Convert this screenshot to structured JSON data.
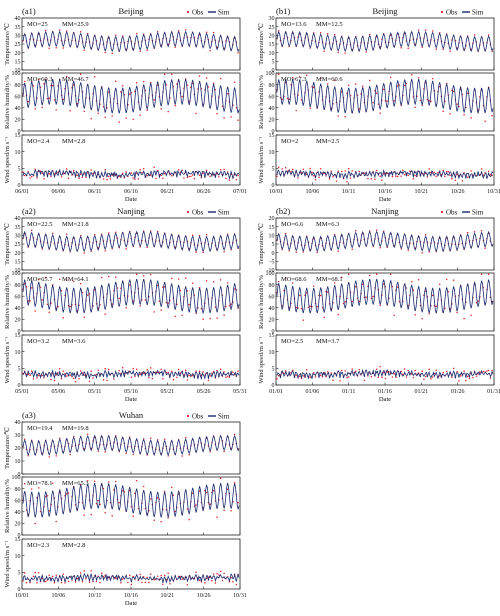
{
  "legend": {
    "obs_label": "Obs",
    "sim_label": "Sim"
  },
  "colors": {
    "obs": "#e8202a",
    "sim": "#1c2a6e",
    "axis": "#222222"
  },
  "variable_labels": {
    "temperature": "Temperature/℃",
    "rh": "Relative humidity/%",
    "wind": "Wind speed/m s⁻¹"
  },
  "chart_data": [
    {
      "id": "a1",
      "panel_label": "(a1)",
      "title": "Beijing",
      "type": "line",
      "xlabel": "Date",
      "x_ticks": [
        "06/01",
        "06/06",
        "06/11",
        "06/16",
        "06/21",
        "06/26",
        "07/01"
      ],
      "rows": [
        {
          "var": "temperature",
          "ylim": [
            10,
            40
          ],
          "yticks": [
            "10",
            "15",
            "20",
            "25",
            "30",
            "35",
            "40"
          ],
          "mo": "MO=25",
          "mm": "MM=25.9"
        },
        {
          "var": "rh",
          "ylim": [
            0,
            100
          ],
          "yticks": [
            "0",
            "20",
            "40",
            "60",
            "80",
            "100"
          ],
          "mo": "MO=60.3",
          "mm": "MM=46.7"
        },
        {
          "var": "wind",
          "ylim": [
            0,
            15
          ],
          "yticks": [
            "0",
            "5",
            "10",
            "15"
          ],
          "mo": "MO=2.4",
          "mm": "MM=2.8"
        }
      ]
    },
    {
      "id": "b1",
      "panel_label": "(b1)",
      "title": "Beijing",
      "type": "line",
      "xlabel": "Date",
      "x_ticks": [
        "10/01",
        "10/06",
        "10/11",
        "10/16",
        "10/21",
        "10/26",
        "10/31"
      ],
      "rows": [
        {
          "var": "temperature",
          "ylim": [
            0,
            30
          ],
          "yticks": [
            "0",
            "5",
            "10",
            "15",
            "20",
            "25",
            "30"
          ],
          "mo": "MO=13.6",
          "mm": "MM=12.5"
        },
        {
          "var": "rh",
          "ylim": [
            0,
            100
          ],
          "yticks": [
            "0",
            "20",
            "40",
            "60",
            "80",
            "100"
          ],
          "mo": "MO=67.3",
          "mm": "MM=60.6"
        },
        {
          "var": "wind",
          "ylim": [
            0,
            15
          ],
          "yticks": [
            "0",
            "5",
            "10",
            "15"
          ],
          "mo": "MO=2",
          "mm": "MM=2.5"
        }
      ]
    },
    {
      "id": "a2",
      "panel_label": "(a2)",
      "title": "Nanjing",
      "type": "line",
      "xlabel": "Date",
      "x_ticks": [
        "05/01",
        "05/06",
        "05/11",
        "05/16",
        "05/21",
        "05/26",
        "05/31"
      ],
      "rows": [
        {
          "var": "temperature",
          "ylim": [
            10,
            40
          ],
          "yticks": [
            "10",
            "15",
            "20",
            "25",
            "30",
            "35",
            "40"
          ],
          "mo": "MO=22.5",
          "mm": "MM=21.8"
        },
        {
          "var": "rh",
          "ylim": [
            0,
            100
          ],
          "yticks": [
            "0",
            "20",
            "40",
            "60",
            "80",
            "100"
          ],
          "mo": "MO=65.7",
          "mm": "MM=64.1"
        },
        {
          "var": "wind",
          "ylim": [
            0,
            15
          ],
          "yticks": [
            "0",
            "5",
            "10",
            "15"
          ],
          "mo": "MO=3.2",
          "mm": "MM=3.6"
        }
      ]
    },
    {
      "id": "b2",
      "panel_label": "(b2)",
      "title": "Nanjing",
      "type": "line",
      "xlabel": "Date",
      "x_ticks": [
        "01/01",
        "01/06",
        "01/11",
        "01/16",
        "01/21",
        "01/26",
        "01/31"
      ],
      "rows": [
        {
          "var": "temperature",
          "ylim": [
            -10,
            20
          ],
          "yticks": [
            "-10",
            "-5",
            "0",
            "5",
            "10",
            "15",
            "20"
          ],
          "mo": "MO=6.6",
          "mm": "MM=6.3"
        },
        {
          "var": "rh",
          "ylim": [
            0,
            100
          ],
          "yticks": [
            "0",
            "20",
            "40",
            "60",
            "80",
            "100"
          ],
          "mo": "MO=68.6",
          "mm": "MM=68.1"
        },
        {
          "var": "wind",
          "ylim": [
            0,
            15
          ],
          "yticks": [
            "0",
            "5",
            "10",
            "15"
          ],
          "mo": "MO=2.5",
          "mm": "MM=3.7"
        }
      ]
    },
    {
      "id": "a3",
      "panel_label": "(a3)",
      "title": "Wuhan",
      "type": "line",
      "xlabel": "Date",
      "x_ticks": [
        "10/01",
        "10/06",
        "10/11",
        "10/16",
        "10/21",
        "10/26",
        "10/31"
      ],
      "rows": [
        {
          "var": "temperature",
          "ylim": [
            0,
            40
          ],
          "yticks": [
            "0",
            "10",
            "20",
            "30",
            "40"
          ],
          "mo": "MO=19.4",
          "mm": "MM=19.8"
        },
        {
          "var": "rh",
          "ylim": [
            0,
            100
          ],
          "yticks": [
            "0",
            "20",
            "40",
            "60",
            "80",
            "100"
          ],
          "mo": "MO=78.1",
          "mm": "MM=65.3"
        },
        {
          "var": "wind",
          "ylim": [
            0,
            15
          ],
          "yticks": [
            "0",
            "5",
            "10",
            "15"
          ],
          "mo": "MO=2.3",
          "mm": "MM=2.8"
        }
      ]
    }
  ]
}
